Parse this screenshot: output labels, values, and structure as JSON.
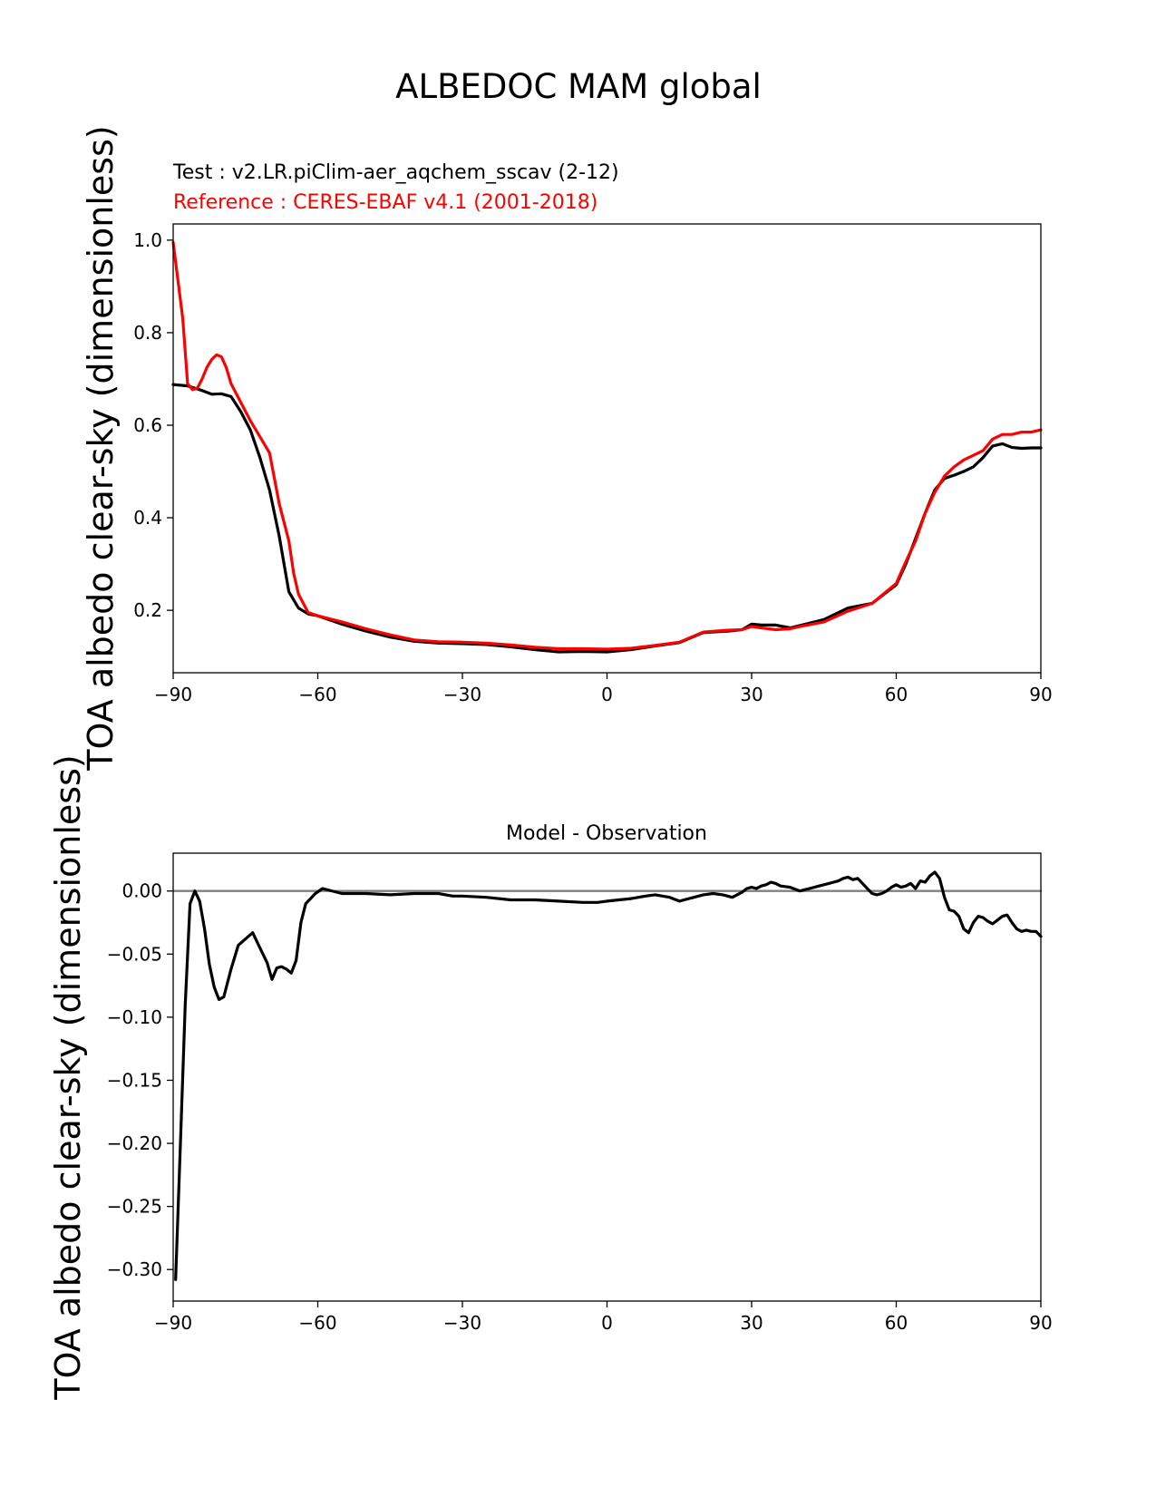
{
  "figure": {
    "title": "ALBEDOC MAM global"
  },
  "colors": {
    "test": "#000000",
    "reference": "#ff0000",
    "zero_line": "#808080"
  },
  "chart_data": [
    {
      "type": "line",
      "test_label": "Test : v2.LR.piClim-aer_aqchem_sscav (2-12)",
      "reference_label": "Reference : CERES-EBAF v4.1 (2001-2018)",
      "xlabel": "",
      "ylabel": "TOA albedo clear-sky (dimensionless)",
      "xlim": [
        -90,
        90
      ],
      "ylim": [
        0.065,
        1.035
      ],
      "xticks": [
        -90,
        -60,
        -30,
        0,
        30,
        60,
        90
      ],
      "xtick_labels": [
        "−90",
        "−60",
        "−30",
        "0",
        "30",
        "60",
        "90"
      ],
      "yticks": [
        0.2,
        0.4,
        0.6,
        0.8,
        1.0
      ],
      "ytick_labels": [
        "0.2",
        "0.4",
        "0.6",
        "0.8",
        "1.0"
      ],
      "series": [
        {
          "name": "Test",
          "x": [
            -90,
            -87,
            -84,
            -82,
            -80,
            -78,
            -76,
            -74,
            -72,
            -70,
            -68,
            -66,
            -64,
            -62,
            -60,
            -55,
            -50,
            -45,
            -40,
            -35,
            -30,
            -25,
            -20,
            -15,
            -10,
            -5,
            0,
            5,
            10,
            15,
            20,
            25,
            28,
            30,
            32,
            35,
            38,
            40,
            45,
            50,
            55,
            60,
            62,
            64,
            66,
            68,
            70,
            72,
            74,
            76,
            78,
            80,
            82,
            84,
            86,
            88,
            90
          ],
          "y": [
            0.688,
            0.685,
            0.675,
            0.667,
            0.668,
            0.662,
            0.63,
            0.59,
            0.53,
            0.46,
            0.36,
            0.24,
            0.205,
            0.192,
            0.188,
            0.17,
            0.155,
            0.142,
            0.133,
            0.129,
            0.128,
            0.126,
            0.121,
            0.115,
            0.11,
            0.111,
            0.11,
            0.115,
            0.123,
            0.13,
            0.152,
            0.155,
            0.158,
            0.17,
            0.168,
            0.168,
            0.162,
            0.167,
            0.18,
            0.205,
            0.215,
            0.255,
            0.3,
            0.355,
            0.41,
            0.46,
            0.485,
            0.492,
            0.5,
            0.51,
            0.53,
            0.555,
            0.56,
            0.552,
            0.55,
            0.551,
            0.551
          ]
        },
        {
          "name": "Reference",
          "x": [
            -90,
            -88,
            -87,
            -86,
            -85,
            -84,
            -83,
            -82,
            -81,
            -80,
            -79,
            -78,
            -76,
            -74,
            -72,
            -70,
            -68,
            -66,
            -65,
            -64,
            -62,
            -60,
            -55,
            -50,
            -45,
            -40,
            -35,
            -30,
            -25,
            -20,
            -15,
            -10,
            -5,
            0,
            5,
            10,
            15,
            20,
            25,
            28,
            30,
            32,
            35,
            38,
            40,
            45,
            50,
            55,
            60,
            62,
            64,
            66,
            68,
            70,
            72,
            74,
            76,
            78,
            80,
            82,
            84,
            86,
            88,
            90
          ],
          "y": [
            0.995,
            0.83,
            0.69,
            0.677,
            0.68,
            0.7,
            0.725,
            0.742,
            0.752,
            0.748,
            0.725,
            0.69,
            0.65,
            0.61,
            0.575,
            0.54,
            0.43,
            0.35,
            0.28,
            0.235,
            0.195,
            0.188,
            0.175,
            0.16,
            0.147,
            0.136,
            0.132,
            0.131,
            0.129,
            0.125,
            0.12,
            0.117,
            0.117,
            0.116,
            0.118,
            0.124,
            0.131,
            0.153,
            0.157,
            0.158,
            0.165,
            0.162,
            0.158,
            0.16,
            0.165,
            0.175,
            0.198,
            0.215,
            0.258,
            0.305,
            0.35,
            0.41,
            0.455,
            0.49,
            0.51,
            0.525,
            0.535,
            0.545,
            0.57,
            0.58,
            0.58,
            0.585,
            0.585,
            0.59
          ]
        }
      ]
    },
    {
      "type": "line",
      "title": "Model - Observation",
      "xlabel": "",
      "ylabel": "TOA albedo clear-sky (dimensionless)",
      "xlim": [
        -90,
        90
      ],
      "ylim": [
        -0.325,
        0.03
      ],
      "xticks": [
        -90,
        -60,
        -30,
        0,
        30,
        60,
        90
      ],
      "xtick_labels": [
        "−90",
        "−60",
        "−30",
        "0",
        "30",
        "60",
        "90"
      ],
      "yticks": [
        0.0,
        -0.05,
        -0.1,
        -0.15,
        -0.2,
        -0.25,
        -0.3
      ],
      "ytick_labels": [
        "0.00",
        "−0.05",
        "−0.10",
        "−0.15",
        "−0.20",
        "−0.25",
        "−0.30"
      ],
      "series": [
        {
          "name": "Model - Observation",
          "x": [
            -89.5,
            -88.5,
            -87.5,
            -86.5,
            -85.5,
            -84.5,
            -83.5,
            -82.5,
            -81.5,
            -80.5,
            -79.5,
            -78,
            -76.5,
            -75,
            -73.5,
            -72,
            -70.5,
            -69.5,
            -68.5,
            -67.5,
            -66.5,
            -65.5,
            -64.5,
            -63.5,
            -62.5,
            -61.5,
            -60.5,
            -59,
            -55,
            -50,
            -45,
            -40,
            -35,
            -32,
            -30,
            -25,
            -20,
            -15,
            -10,
            -5,
            -2,
            0,
            5,
            8,
            10,
            13,
            15,
            20,
            22,
            24,
            26,
            28,
            29,
            30,
            31,
            32,
            33,
            34,
            35,
            36,
            38,
            40,
            42,
            44,
            46,
            47,
            48,
            49,
            50,
            51,
            52,
            53,
            54,
            55,
            56,
            57,
            58,
            59,
            60,
            61,
            62,
            63,
            64,
            65,
            66,
            67,
            68,
            69,
            70,
            71,
            72,
            73,
            74,
            75,
            76,
            77,
            78,
            79,
            80,
            81,
            82,
            83,
            84,
            85,
            86,
            87,
            88,
            89,
            90
          ],
          "y": [
            -0.308,
            -0.2,
            -0.09,
            -0.01,
            0.0,
            -0.008,
            -0.03,
            -0.058,
            -0.076,
            -0.086,
            -0.084,
            -0.062,
            -0.043,
            -0.038,
            -0.033,
            -0.045,
            -0.057,
            -0.07,
            -0.061,
            -0.06,
            -0.062,
            -0.065,
            -0.055,
            -0.025,
            -0.01,
            -0.006,
            -0.002,
            0.002,
            -0.002,
            -0.002,
            -0.003,
            -0.002,
            -0.002,
            -0.004,
            -0.004,
            -0.005,
            -0.007,
            -0.007,
            -0.008,
            -0.009,
            -0.009,
            -0.008,
            -0.006,
            -0.004,
            -0.003,
            -0.005,
            -0.008,
            -0.003,
            -0.002,
            -0.003,
            -0.005,
            -0.001,
            0.002,
            0.003,
            0.002,
            0.004,
            0.005,
            0.007,
            0.006,
            0.004,
            0.003,
            0.0,
            0.002,
            0.004,
            0.006,
            0.007,
            0.008,
            0.01,
            0.011,
            0.009,
            0.01,
            0.006,
            0.002,
            -0.002,
            -0.003,
            -0.002,
            0.0,
            0.003,
            0.005,
            0.003,
            0.004,
            0.006,
            0.002,
            0.008,
            0.007,
            0.012,
            0.015,
            0.01,
            -0.005,
            -0.015,
            -0.016,
            -0.02,
            -0.03,
            -0.033,
            -0.025,
            -0.02,
            -0.021,
            -0.024,
            -0.026,
            -0.023,
            -0.02,
            -0.019,
            -0.025,
            -0.03,
            -0.032,
            -0.031,
            -0.032,
            -0.032,
            -0.036
          ]
        },
        {
          "name": "zero line",
          "x": [
            -90,
            90
          ],
          "y": [
            0,
            0
          ]
        }
      ]
    }
  ]
}
